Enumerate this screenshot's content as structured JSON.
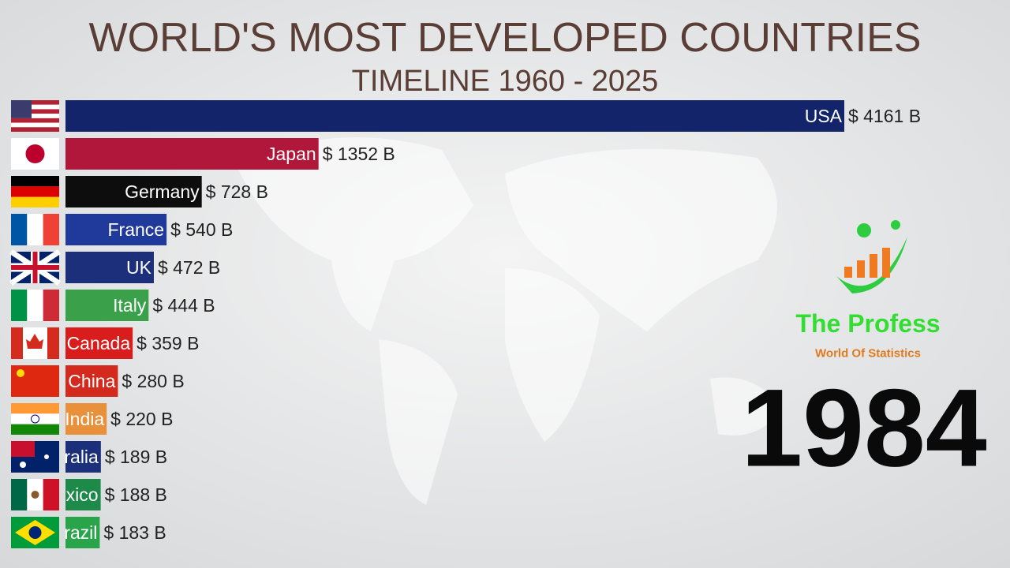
{
  "chart_data": {
    "type": "bar",
    "orientation": "horizontal",
    "title": "WORLD'S MOST DEVELOPED COUNTRIES",
    "subtitle": "TIMELINE 1960 - 2025",
    "categories": [
      "USA",
      "Japan",
      "Germany",
      "France",
      "UK",
      "Italy",
      "Canada",
      "China",
      "India",
      "Australia",
      "Mexico",
      "Brazil"
    ],
    "values": [
      4161,
      1352,
      728,
      540,
      472,
      444,
      359,
      280,
      220,
      189,
      188,
      183
    ],
    "value_labels": [
      "$ 4161 B",
      "$ 1352 B",
      "$ 728 B",
      "$ 540 B",
      "$ 472 B",
      "$ 444 B",
      "$ 359 B",
      "$ 280 B",
      "$ 220 B",
      "$ 189 B",
      "$ 188 B",
      "$ 183 B"
    ],
    "colors": [
      "#14246a",
      "#b0173a",
      "#0d0d0d",
      "#1f3a9a",
      "#1b2f7a",
      "#3aa14a",
      "#d91c1c",
      "#d42a1e",
      "#e8913a",
      "#1b2f7a",
      "#1e8a4a",
      "#2aa44a"
    ],
    "year": "1984",
    "logo_title": "The Profess",
    "logo_subtitle": "World Of Statistics"
  }
}
